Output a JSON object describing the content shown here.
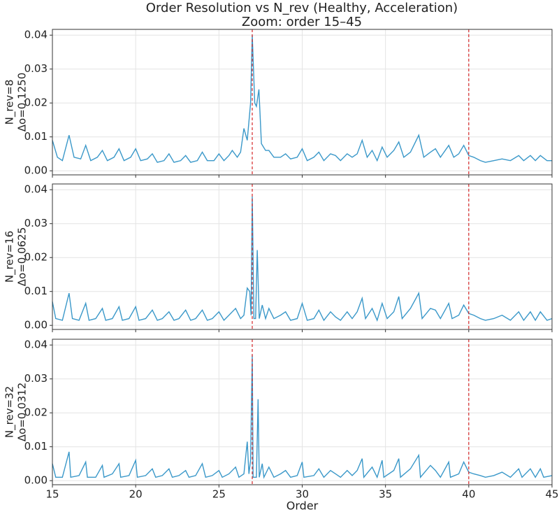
{
  "chart_data": [
    {
      "type": "line",
      "title": "Order Resolution vs N_rev (Healthy, Acceleration)",
      "subtitle": "Zoom: order 15–45",
      "ylabel": [
        "N_rev=8",
        "Δo=0.1250"
      ],
      "color": "#3a98c9",
      "grid": true,
      "xlim": [
        15,
        45
      ],
      "xticks": [
        15,
        20,
        25,
        30,
        35,
        40,
        45
      ],
      "ylim": [
        -0.0012,
        0.0417
      ],
      "yticks": [
        {
          "value": 0,
          "label": "0.00"
        },
        {
          "value": 0.01,
          "label": "0.01"
        },
        {
          "value": 0.02,
          "label": "0.02"
        },
        {
          "value": 0.03,
          "label": "0.03"
        },
        {
          "value": 0.04,
          "label": "0.04"
        }
      ],
      "vlines": [
        27,
        40
      ],
      "vline_color": "#d62728",
      "x": [
        15,
        15.3,
        15.6,
        16,
        16.3,
        16.7,
        17,
        17.3,
        17.7,
        18,
        18.3,
        18.7,
        19,
        19.3,
        19.7,
        20,
        20.3,
        20.7,
        21,
        21.3,
        21.7,
        22,
        22.3,
        22.7,
        23,
        23.3,
        23.7,
        24,
        24.3,
        24.7,
        25,
        25.3,
        25.6,
        25.8,
        26.1,
        26.3,
        26.5,
        26.7,
        26.9,
        27,
        27.15,
        27.25,
        27.4,
        27.55,
        27.8,
        28,
        28.3,
        28.7,
        29,
        29.3,
        29.7,
        30,
        30.3,
        30.7,
        31,
        31.3,
        31.7,
        32,
        32.3,
        32.7,
        33,
        33.3,
        33.6,
        33.9,
        34.2,
        34.5,
        34.8,
        35.1,
        35.5,
        35.8,
        36.1,
        36.5,
        37,
        37.3,
        37.7,
        38,
        38.3,
        38.8,
        39.1,
        39.4,
        39.7,
        40,
        40.3,
        40.7,
        41,
        41.5,
        42,
        42.5,
        43,
        43.3,
        43.7,
        44,
        44.3,
        44.7,
        45
      ],
      "values": [
        0.009,
        0.004,
        0.003,
        0.0105,
        0.004,
        0.0035,
        0.0075,
        0.003,
        0.004,
        0.006,
        0.003,
        0.004,
        0.0065,
        0.003,
        0.004,
        0.0065,
        0.003,
        0.0035,
        0.005,
        0.0025,
        0.003,
        0.005,
        0.0025,
        0.003,
        0.0045,
        0.0025,
        0.003,
        0.0055,
        0.003,
        0.003,
        0.005,
        0.003,
        0.0045,
        0.006,
        0.004,
        0.0055,
        0.0125,
        0.009,
        0.02,
        0.04,
        0.02,
        0.019,
        0.024,
        0.008,
        0.006,
        0.006,
        0.004,
        0.004,
        0.005,
        0.0035,
        0.004,
        0.0065,
        0.003,
        0.004,
        0.0055,
        0.003,
        0.005,
        0.0045,
        0.003,
        0.005,
        0.004,
        0.005,
        0.009,
        0.004,
        0.006,
        0.003,
        0.007,
        0.004,
        0.006,
        0.0085,
        0.004,
        0.0055,
        0.0105,
        0.004,
        0.0055,
        0.0065,
        0.004,
        0.0075,
        0.004,
        0.005,
        0.0075,
        0.0045,
        0.004,
        0.003,
        0.0025,
        0.003,
        0.0035,
        0.003,
        0.0045,
        0.003,
        0.0045,
        0.003,
        0.0045,
        0.003,
        0.003
      ]
    },
    {
      "type": "line",
      "ylabel": [
        "N_rev=16",
        "Δo=0.0625"
      ],
      "color": "#3a98c9",
      "grid": true,
      "xlim": [
        15,
        45
      ],
      "xticks": [
        15,
        20,
        25,
        30,
        35,
        40,
        45
      ],
      "ylim": [
        -0.0012,
        0.0417
      ],
      "yticks": [
        {
          "value": 0,
          "label": "0.00"
        },
        {
          "value": 0.01,
          "label": "0.01"
        },
        {
          "value": 0.02,
          "label": "0.02"
        },
        {
          "value": 0.03,
          "label": "0.03"
        },
        {
          "value": 0.04,
          "label": "0.04"
        }
      ],
      "vlines": [
        27,
        40
      ],
      "vline_color": "#d62728",
      "x": [
        15,
        15.2,
        15.6,
        16,
        16.2,
        16.6,
        17,
        17.2,
        17.6,
        18,
        18.2,
        18.6,
        19,
        19.2,
        19.6,
        20,
        20.2,
        20.6,
        21,
        21.3,
        21.6,
        22,
        22.3,
        22.6,
        23,
        23.3,
        23.6,
        24,
        24.3,
        24.6,
        25,
        25.3,
        25.6,
        26,
        26.3,
        26.5,
        26.7,
        26.85,
        26.93,
        27,
        27.1,
        27.2,
        27.3,
        27.42,
        27.6,
        27.8,
        28,
        28.3,
        28.7,
        29,
        29.3,
        29.7,
        30,
        30.3,
        30.7,
        31,
        31.3,
        31.7,
        32,
        32.3,
        32.7,
        33,
        33.3,
        33.6,
        33.8,
        34.2,
        34.5,
        34.8,
        35.1,
        35.5,
        35.8,
        36,
        36.5,
        37,
        37.2,
        37.7,
        38,
        38.3,
        38.8,
        39,
        39.4,
        39.7,
        40,
        40.3,
        40.7,
        41,
        41.5,
        42,
        42.5,
        43,
        43.3,
        43.7,
        44,
        44.3,
        44.7,
        45
      ],
      "values": [
        0.007,
        0.002,
        0.0015,
        0.0095,
        0.002,
        0.0015,
        0.0065,
        0.0015,
        0.002,
        0.005,
        0.0015,
        0.002,
        0.0055,
        0.0015,
        0.002,
        0.0055,
        0.0015,
        0.002,
        0.0045,
        0.0015,
        0.002,
        0.004,
        0.0015,
        0.002,
        0.0045,
        0.0015,
        0.002,
        0.0045,
        0.0015,
        0.002,
        0.004,
        0.0015,
        0.003,
        0.005,
        0.002,
        0.003,
        0.011,
        0.01,
        0.003,
        0.038,
        0.002,
        0.002,
        0.0222,
        0.002,
        0.006,
        0.002,
        0.005,
        0.002,
        0.003,
        0.004,
        0.0015,
        0.002,
        0.0065,
        0.0015,
        0.002,
        0.0045,
        0.0015,
        0.004,
        0.0025,
        0.0015,
        0.004,
        0.002,
        0.004,
        0.008,
        0.002,
        0.005,
        0.0015,
        0.0065,
        0.002,
        0.004,
        0.0085,
        0.002,
        0.005,
        0.0095,
        0.002,
        0.005,
        0.0045,
        0.002,
        0.0065,
        0.002,
        0.003,
        0.006,
        0.0035,
        0.003,
        0.002,
        0.0015,
        0.002,
        0.003,
        0.0015,
        0.004,
        0.0015,
        0.004,
        0.0015,
        0.004,
        0.0015,
        0.002
      ]
    },
    {
      "type": "line",
      "ylabel": [
        "N_rev=32",
        "Δo=0.0312"
      ],
      "xlabel": "Order",
      "color": "#3a98c9",
      "grid": true,
      "xlim": [
        15,
        45
      ],
      "xticks": [
        15,
        20,
        25,
        30,
        35,
        40,
        45
      ],
      "ylim": [
        -0.0012,
        0.0417
      ],
      "yticks": [
        {
          "value": 0,
          "label": "0.00"
        },
        {
          "value": 0.01,
          "label": "0.01"
        },
        {
          "value": 0.02,
          "label": "0.02"
        },
        {
          "value": 0.03,
          "label": "0.03"
        },
        {
          "value": 0.04,
          "label": "0.04"
        }
      ],
      "vlines": [
        27,
        40
      ],
      "vline_color": "#d62728",
      "x": [
        15,
        15.2,
        15.6,
        16,
        16.1,
        16.6,
        17,
        17.1,
        17.6,
        18,
        18.1,
        18.6,
        19,
        19.1,
        19.6,
        20,
        20.1,
        20.6,
        21,
        21.2,
        21.6,
        22,
        22.2,
        22.6,
        23,
        23.2,
        23.6,
        24,
        24.2,
        24.6,
        25,
        25.2,
        25.6,
        26,
        26.2,
        26.5,
        26.7,
        26.8,
        26.9,
        27,
        27.05,
        27.25,
        27.35,
        27.42,
        27.6,
        27.7,
        28,
        28.3,
        28.7,
        29,
        29.3,
        29.7,
        30,
        30.1,
        30.7,
        31,
        31.3,
        31.7,
        32,
        32.3,
        32.7,
        33,
        33.3,
        33.6,
        33.7,
        34.2,
        34.5,
        34.8,
        34.9,
        35.5,
        35.8,
        35.9,
        36.5,
        37,
        37.1,
        37.7,
        38,
        38.3,
        38.8,
        38.9,
        39.4,
        39.7,
        40,
        40.3,
        40.7,
        41,
        41.5,
        42,
        42.5,
        43,
        43.2,
        43.7,
        44,
        44.3,
        44.5,
        45
      ],
      "values": [
        0.005,
        0.001,
        0.001,
        0.0085,
        0.001,
        0.0015,
        0.0055,
        0.001,
        0.001,
        0.0045,
        0.001,
        0.002,
        0.005,
        0.001,
        0.0015,
        0.006,
        0.001,
        0.0015,
        0.0035,
        0.001,
        0.0015,
        0.0035,
        0.001,
        0.0015,
        0.003,
        0.001,
        0.0015,
        0.005,
        0.001,
        0.0015,
        0.003,
        0.001,
        0.002,
        0.004,
        0.001,
        0.002,
        0.0115,
        0.002,
        0.006,
        0.037,
        0.001,
        0.001,
        0.024,
        0.001,
        0.005,
        0.001,
        0.004,
        0.001,
        0.002,
        0.003,
        0.001,
        0.0015,
        0.0055,
        0.001,
        0.0015,
        0.0035,
        0.001,
        0.003,
        0.002,
        0.001,
        0.003,
        0.0015,
        0.003,
        0.0065,
        0.001,
        0.004,
        0.001,
        0.006,
        0.001,
        0.003,
        0.0065,
        0.001,
        0.0035,
        0.0075,
        0.001,
        0.0045,
        0.003,
        0.001,
        0.0055,
        0.001,
        0.002,
        0.0055,
        0.0025,
        0.002,
        0.0015,
        0.001,
        0.0015,
        0.0025,
        0.001,
        0.0035,
        0.001,
        0.0035,
        0.001,
        0.0035,
        0.001,
        0.0015
      ]
    }
  ]
}
